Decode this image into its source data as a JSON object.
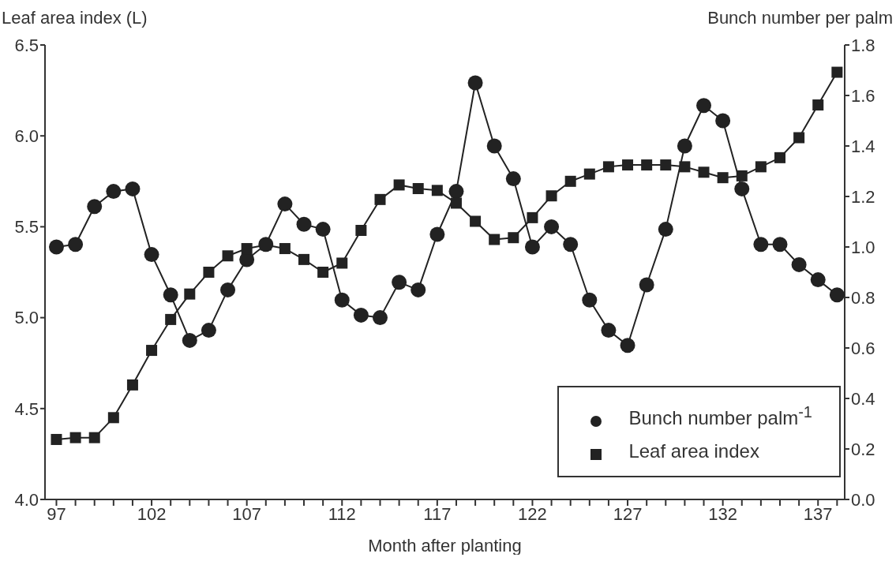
{
  "chart_data": {
    "type": "line",
    "xlabel": "Month after planting",
    "ylabel": "Leaf area index (L)",
    "y2label": "Bunch number per palm",
    "x": [
      97,
      98,
      99,
      100,
      101,
      102,
      103,
      104,
      105,
      106,
      107,
      108,
      109,
      110,
      111,
      112,
      113,
      114,
      115,
      116,
      117,
      118,
      119,
      120,
      121,
      122,
      123,
      124,
      125,
      126,
      127,
      128,
      129,
      130,
      131,
      132,
      133,
      134,
      135,
      136,
      137,
      138
    ],
    "series": [
      {
        "name": "Bunch number palm$^{-1}$",
        "color": "#222222",
        "axis": "y2",
        "marker": "circle",
        "values": [
          1.0,
          1.01,
          1.16,
          1.22,
          1.23,
          0.97,
          0.81,
          0.63,
          0.67,
          0.83,
          0.95,
          1.01,
          1.17,
          1.09,
          1.07,
          0.79,
          0.73,
          0.72,
          0.86,
          0.83,
          1.05,
          1.22,
          1.65,
          1.4,
          1.27,
          1.0,
          1.08,
          1.01,
          0.79,
          0.67,
          0.61,
          0.85,
          1.07,
          1.4,
          1.56,
          1.5,
          1.23,
          1.01,
          1.01,
          0.93,
          0.87,
          0.81
        ]
      },
      {
        "name": "Leaf area index",
        "color": "#222222",
        "marker": "square",
        "values": [
          4.33,
          4.34,
          4.34,
          4.45,
          4.63,
          4.82,
          4.99,
          5.13,
          5.25,
          5.34,
          5.38,
          5.4,
          5.38,
          5.32,
          5.25,
          5.3,
          5.48,
          5.65,
          5.73,
          5.71,
          5.7,
          5.63,
          5.53,
          5.43,
          5.44,
          5.55,
          5.67,
          5.75,
          5.79,
          5.83,
          5.84,
          5.84,
          5.84,
          5.83,
          5.8,
          5.77,
          5.78,
          5.83,
          5.88,
          5.99,
          6.17,
          6.35
        ]
      }
    ],
    "xlim": [
      96.4,
      138.4
    ],
    "xticks": [
      97,
      {
        "value": 98,
        "label": null
      },
      {
        "value": 99,
        "label": null
      },
      {
        "value": 100,
        "label": null
      },
      {
        "value": 101,
        "label": null
      },
      102,
      {
        "value": 103,
        "label": null
      },
      {
        "value": 104,
        "label": null
      },
      {
        "value": 105,
        "label": null
      },
      {
        "value": 106,
        "label": null
      },
      107,
      {
        "value": 108,
        "label": null
      },
      {
        "value": 109,
        "label": null
      },
      {
        "value": 110,
        "label": null
      },
      {
        "value": 111,
        "label": null
      },
      112,
      {
        "value": 113,
        "label": null
      },
      {
        "value": 114,
        "label": null
      },
      {
        "value": 115,
        "label": null
      },
      {
        "value": 116,
        "label": null
      },
      117,
      {
        "value": 118,
        "label": null
      },
      {
        "value": 119,
        "label": null
      },
      {
        "value": 120,
        "label": null
      },
      {
        "value": 121,
        "label": null
      },
      122,
      {
        "value": 123,
        "label": null
      },
      {
        "value": 124,
        "label": null
      },
      {
        "value": 125,
        "label": null
      },
      {
        "value": 126,
        "label": null
      },
      127,
      {
        "value": 128,
        "label": null
      },
      {
        "value": 129,
        "label": null
      },
      {
        "value": 130,
        "label": null
      },
      {
        "value": 131,
        "label": null
      },
      132,
      {
        "value": 133,
        "label": null
      },
      {
        "value": 134,
        "label": null
      },
      {
        "value": 135,
        "label": null
      },
      {
        "value": 136,
        "label": null
      },
      137,
      {
        "value": 138,
        "label": null
      }
    ],
    "ylim": [
      4.0,
      6.5
    ],
    "yticks": [
      {
        "value": 4.0,
        "label": "4.0"
      },
      4.5,
      {
        "value": 5.0,
        "label": "5.0"
      },
      5.5,
      {
        "value": 6.0,
        "label": "6.0"
      },
      6.5
    ],
    "y2lim": [
      0,
      1.8
    ],
    "y2ticks": [
      {
        "value": 0,
        "label": "0.0"
      },
      0.2,
      0.4,
      0.6,
      0.8,
      {
        "value": 1.0,
        "label": "1.0"
      },
      1.2,
      1.4,
      1.6,
      1.8
    ],
    "grid": false,
    "legend": "bottom right",
    "line_style": "solid"
  }
}
